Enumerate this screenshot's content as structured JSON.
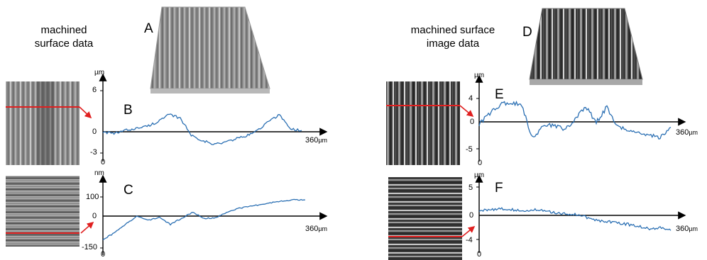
{
  "left": {
    "caption_line1": "machined",
    "caption_line2": "surface data",
    "label_A": "A",
    "chart_B": {
      "label": "B",
      "unit": "µm",
      "ticks": [
        "6",
        "0",
        "-3"
      ],
      "origin": "0",
      "xend": "360",
      "xunit": "µm"
    },
    "chart_C": {
      "label": "C",
      "unit": "nm",
      "ticks": [
        "100",
        "0",
        "-150"
      ],
      "origin": "0",
      "xend": "360",
      "xunit": "µm"
    }
  },
  "right": {
    "caption_line1": "machined surface",
    "caption_line2": "image data",
    "label_D": "D",
    "chart_E": {
      "label": "E",
      "unit": "µm",
      "ticks": [
        "4",
        "0",
        "-5"
      ],
      "origin": "0",
      "xend": "360",
      "xunit": "µm"
    },
    "chart_F": {
      "label": "F",
      "unit": "µm",
      "ticks": [
        "5",
        "0",
        "-4"
      ],
      "origin": "0",
      "xend": "360",
      "xunit": "µm"
    }
  },
  "colors": {
    "profile": "#2a6fb3",
    "scanline": "#e02020",
    "axis": "#000000"
  },
  "chart_data": [
    {
      "type": "line",
      "ylim": [
        -3,
        6
      ],
      "xlim": [
        0,
        360
      ],
      "x": [
        0,
        20,
        40,
        60,
        80,
        100,
        120,
        140,
        160,
        180,
        200,
        220,
        240,
        260,
        280,
        300,
        320,
        340,
        360
      ],
      "y": [
        0,
        -0.3,
        0.2,
        0.5,
        0.8,
        1.5,
        2.5,
        2.0,
        -0.5,
        -1.2,
        -1.8,
        -1.5,
        -1.0,
        -0.6,
        0.2,
        1.5,
        2.5,
        0.4,
        0.2
      ]
    },
    {
      "type": "line",
      "ylim": [
        -150,
        100
      ],
      "xlim": [
        0,
        360
      ],
      "x": [
        0,
        20,
        40,
        60,
        80,
        100,
        120,
        140,
        160,
        180,
        200,
        220,
        240,
        260,
        280,
        300,
        320,
        340,
        360
      ],
      "y": [
        -110,
        -80,
        -40,
        0,
        -20,
        -5,
        -40,
        -10,
        20,
        -10,
        -10,
        20,
        40,
        50,
        60,
        70,
        80,
        85,
        85
      ]
    },
    {
      "type": "line",
      "ylim": [
        -5,
        4
      ],
      "xlim": [
        0,
        360
      ],
      "x": [
        0,
        20,
        40,
        60,
        80,
        100,
        120,
        140,
        160,
        180,
        200,
        220,
        240,
        260,
        280,
        300,
        320,
        340,
        360
      ],
      "y": [
        -0.5,
        1.5,
        3.0,
        3.2,
        3.0,
        -3.0,
        -1.0,
        -0.5,
        -1.5,
        0.5,
        2.5,
        0.0,
        2.5,
        -1.0,
        -1.5,
        -2.0,
        -2.5,
        -3.0,
        -1.0
      ]
    },
    {
      "type": "line",
      "ylim": [
        -4,
        5
      ],
      "xlim": [
        0,
        360
      ],
      "x": [
        0,
        20,
        40,
        60,
        80,
        100,
        120,
        140,
        160,
        180,
        200,
        220,
        240,
        260,
        280,
        300,
        320,
        340,
        360
      ],
      "y": [
        0.8,
        1.0,
        1.2,
        1.0,
        0.8,
        1.0,
        0.8,
        0.5,
        0.3,
        0.2,
        -0.3,
        -0.8,
        -1.0,
        -1.2,
        -1.5,
        -1.8,
        -2.2,
        -2.0,
        -2.5
      ]
    }
  ]
}
